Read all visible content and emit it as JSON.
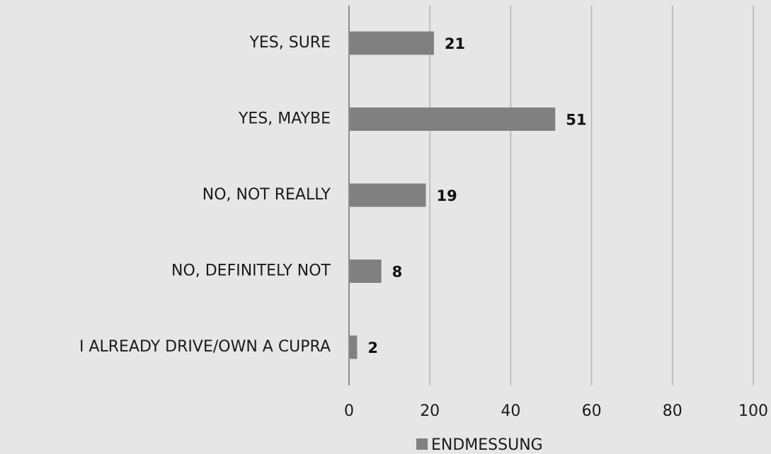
{
  "chart_data": {
    "type": "bar",
    "orientation": "horizontal",
    "categories": [
      "YES, SURE",
      "YES, MAYBE",
      "NO, NOT REALLY",
      "NO, DEFINITELY NOT",
      "I ALREADY DRIVE/OWN A CUPRA"
    ],
    "series": [
      {
        "name": "ENDMESSUNG",
        "values": [
          21,
          51,
          19,
          8,
          2
        ]
      }
    ],
    "xlim": [
      0,
      100
    ],
    "x_ticks": [
      0,
      20,
      40,
      60,
      80,
      100
    ],
    "tick_labels": [
      "0",
      "20",
      "40",
      "60",
      "80",
      "100"
    ],
    "data_labels": [
      "21",
      "51",
      "19",
      "8",
      "2"
    ],
    "grid": "vertical",
    "legend_position": "bottom",
    "title": "",
    "xlabel": "",
    "ylabel": ""
  },
  "colors": {
    "background": "#e6e6e6",
    "bar": "#808080",
    "grid": "#b3b3b3",
    "axis": "#8c8c8c",
    "text": "#1a1a1a"
  }
}
